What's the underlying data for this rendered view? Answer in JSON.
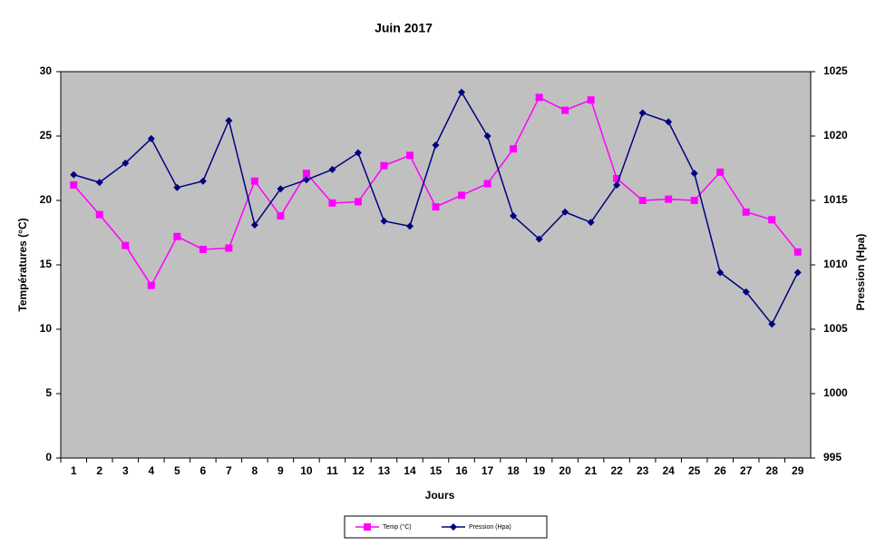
{
  "chart_data": {
    "type": "line",
    "title": "Juin 2017",
    "x_label": "Jours",
    "y_label": "Températures (°C)",
    "y2_label": "Pression (Hpa)",
    "categories": [
      "1",
      "2",
      "3",
      "4",
      "5",
      "6",
      "7",
      "8",
      "9",
      "10",
      "11",
      "12",
      "13",
      "14",
      "15",
      "16",
      "17",
      "18",
      "19",
      "20",
      "21",
      "22",
      "23",
      "24",
      "25",
      "26",
      "27",
      "28",
      "29"
    ],
    "series": [
      {
        "name": "Temp (°C)",
        "color": "#ff00ff",
        "marker": "square",
        "values": [
          21.2,
          18.9,
          16.5,
          13.4,
          17.2,
          16.2,
          16.3,
          21.5,
          18.8,
          22.1,
          19.8,
          19.9,
          22.7,
          23.5,
          19.5,
          20.4,
          21.3,
          24.0,
          28.0,
          27.0,
          27.8,
          21.7,
          20.0,
          20.1,
          20.0,
          22.2,
          19.1,
          18.5,
          16.0
        ]
      },
      {
        "name": "Pression (Hpa)",
        "color": "#000080",
        "marker": "diamond",
        "axis": "y2",
        "values": [
          1017.0,
          1016.4,
          1017.9,
          1019.8,
          1016.0,
          1016.5,
          1021.2,
          1013.1,
          1015.9,
          1016.6,
          1017.4,
          1018.7,
          1013.4,
          1013.0,
          1019.3,
          1023.4,
          1020.0,
          1013.8,
          1012.0,
          1014.1,
          1013.3,
          1016.2,
          1021.8,
          1021.1,
          1017.1,
          1009.4,
          1007.9,
          1005.4,
          1009.4
        ]
      }
    ],
    "ylim": [
      0,
      30
    ],
    "yticks": [
      0,
      5,
      10,
      15,
      20,
      25,
      30
    ],
    "y2lim": [
      995,
      1025
    ],
    "y2ticks": [
      995,
      1000,
      1005,
      1010,
      1015,
      1020,
      1025
    ],
    "plot_background": "#c0c0c0",
    "legend": "bottom"
  }
}
